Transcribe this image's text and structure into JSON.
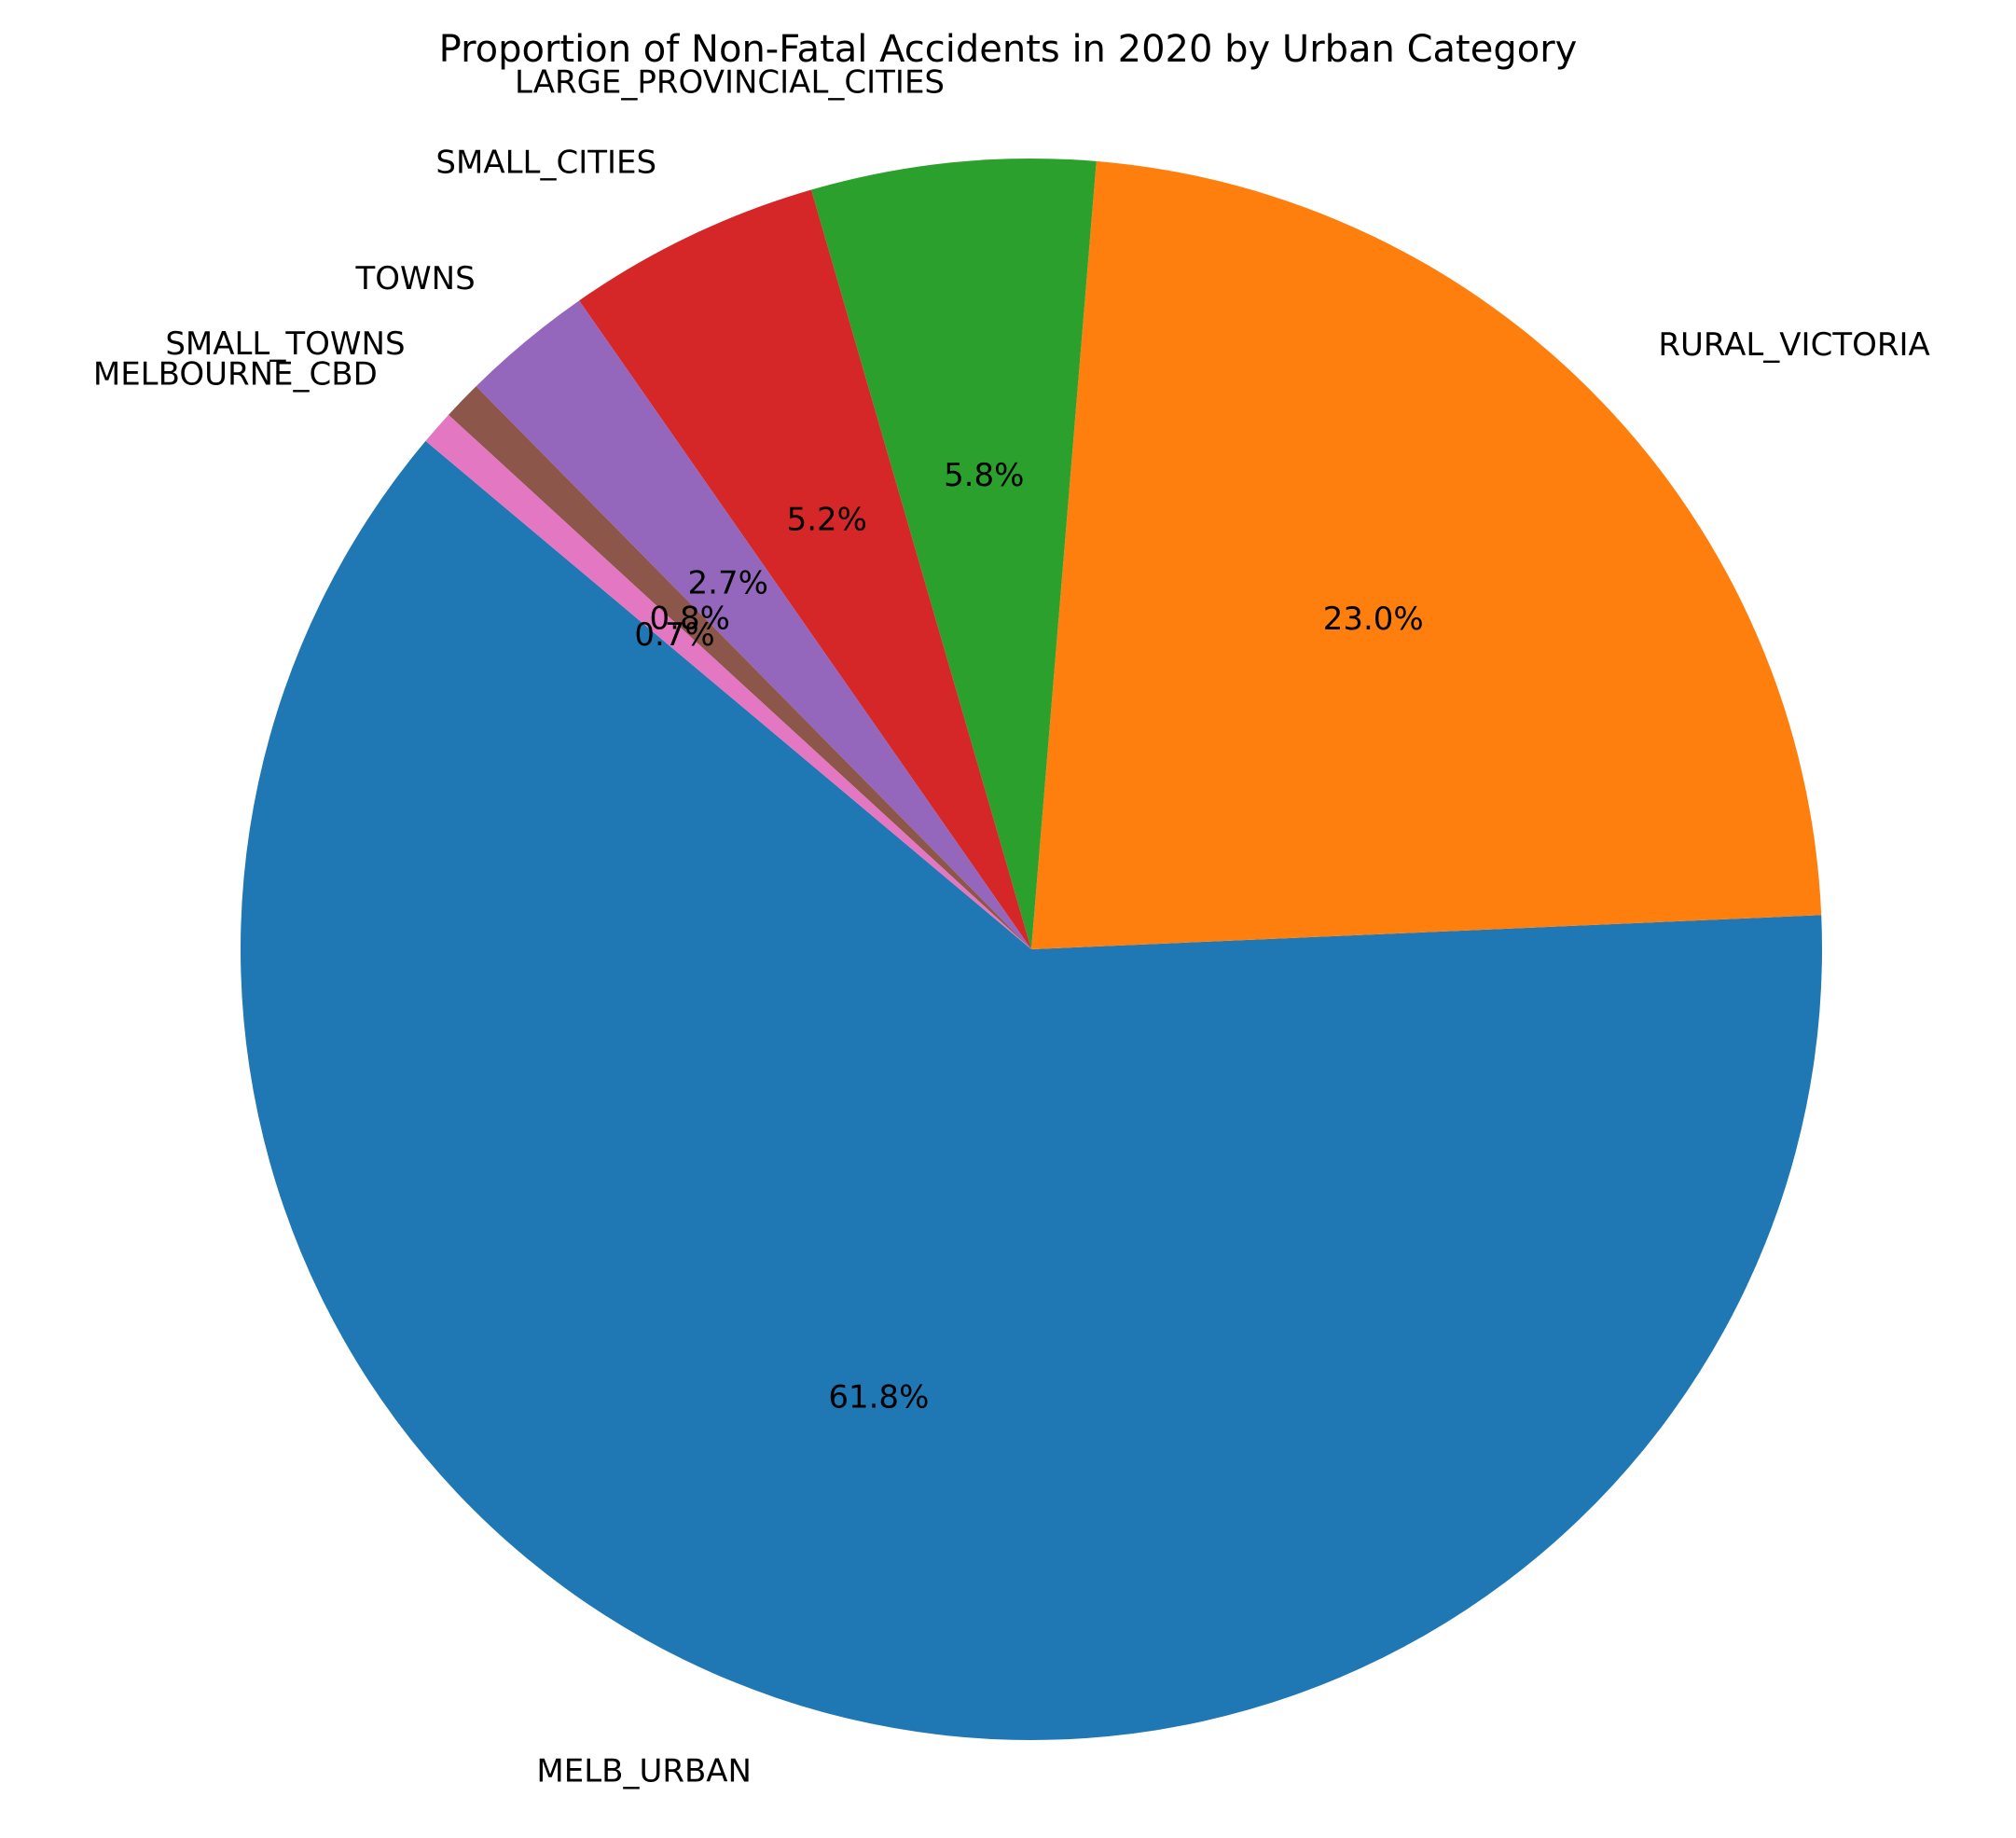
{
  "chart_data": {
    "type": "pie",
    "title": "Proportion of Non-Fatal Accidents in 2020 by Urban Category",
    "categories": [
      "MELB_URBAN",
      "RURAL_VICTORIA",
      "LARGE_PROVINCIAL_CITIES",
      "SMALL_CITIES",
      "TOWNS",
      "SMALL_TOWNS",
      "MELBOURNE_CBD"
    ],
    "values": [
      61.8,
      23.0,
      5.8,
      5.2,
      2.7,
      0.8,
      0.7
    ],
    "value_labels": [
      "61.8%",
      "23.0%",
      "5.8%",
      "5.2%",
      "2.7%",
      "0.8%",
      "0.7%"
    ],
    "colors": [
      "#1f77b4",
      "#ff7f0e",
      "#2ca02c",
      "#d62728",
      "#9467bd",
      "#8c564b",
      "#e377c2"
    ],
    "start_angle_deg": 140,
    "direction": "counterclockwise",
    "legend": "none"
  }
}
